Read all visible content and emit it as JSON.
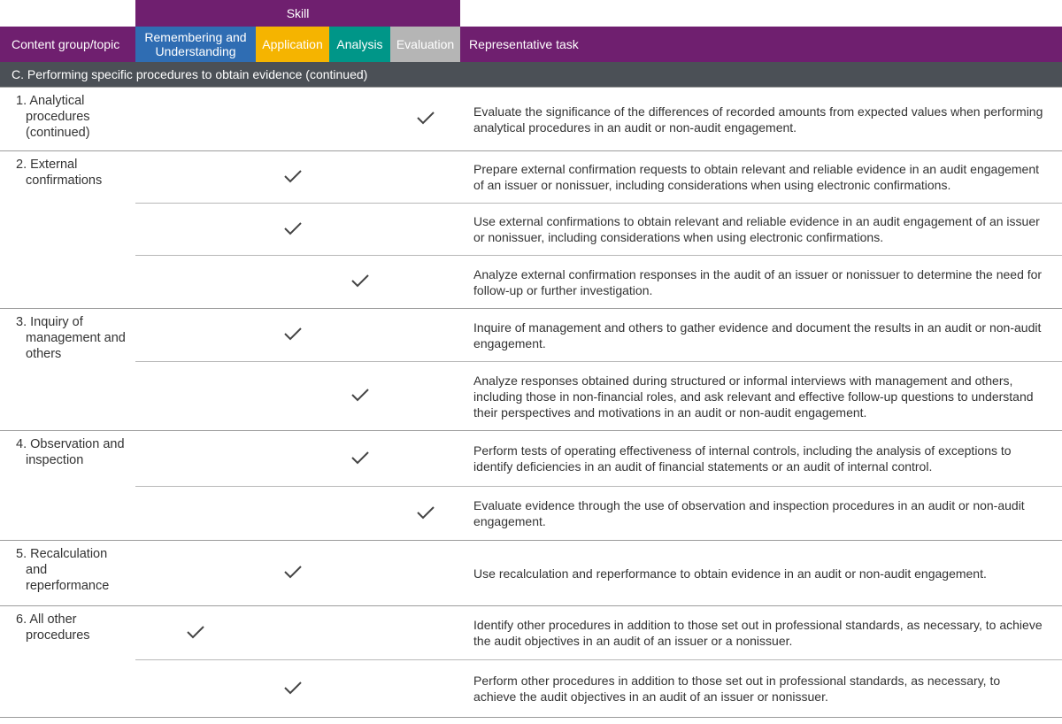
{
  "header": {
    "skill_label": "Skill",
    "columns": [
      "Content group/topic",
      "Remembering and Understanding",
      "Application",
      "Analysis",
      "Evaluation",
      "Representative task"
    ]
  },
  "section": "C. Performing specific procedures to obtain evidence (continued)",
  "groups": [
    {
      "topic": "1. Analytical procedures (continued)",
      "tasks": [
        {
          "checks": [
            false,
            false,
            false,
            true
          ],
          "text": "Evaluate the significance of the differences of recorded amounts from expected values when performing analytical procedures in an audit or non-audit engagement."
        }
      ]
    },
    {
      "topic": "2. External confirmations",
      "tasks": [
        {
          "checks": [
            false,
            true,
            false,
            false
          ],
          "text": "Prepare external confirmation requests to obtain relevant and reliable evidence in an audit engagement of an issuer or nonissuer, including considerations when using electronic confirmations."
        },
        {
          "checks": [
            false,
            true,
            false,
            false
          ],
          "text": "Use external confirmations to obtain relevant and reliable evidence in an audit engagement of an issuer or nonissuer, including considerations when using electronic confirmations."
        },
        {
          "checks": [
            false,
            false,
            true,
            false
          ],
          "text": "Analyze external confirmation responses in the audit of an issuer or nonissuer to determine the need for follow-up or further investigation."
        }
      ]
    },
    {
      "topic": "3. Inquiry of management and others",
      "tasks": [
        {
          "checks": [
            false,
            true,
            false,
            false
          ],
          "text": "Inquire of management and others to gather evidence and document the results in an audit or non-audit engagement."
        },
        {
          "checks": [
            false,
            false,
            true,
            false
          ],
          "text": "Analyze responses obtained during structured or informal interviews with management and others, including those in non-financial roles, and ask relevant and effective follow-up questions to understand their perspectives and motivations in an audit or non-audit engagement."
        }
      ]
    },
    {
      "topic": "4. Observation and inspection",
      "tasks": [
        {
          "checks": [
            false,
            false,
            true,
            false
          ],
          "text": "Perform tests of operating effectiveness of internal controls, including the analysis of exceptions to identify deficiencies in an audit of financial statements or an audit of internal control."
        },
        {
          "checks": [
            false,
            false,
            false,
            true
          ],
          "text": "Evaluate evidence through the use of observation and inspection procedures in an audit or non-audit engagement."
        }
      ]
    },
    {
      "topic": "5. Recalculation and reperformance",
      "tasks": [
        {
          "checks": [
            false,
            true,
            false,
            false
          ],
          "text": "Use recalculation and reperformance to obtain evidence in an audit or non-audit engagement."
        }
      ]
    },
    {
      "topic": "6. All other procedures",
      "tasks": [
        {
          "checks": [
            true,
            false,
            false,
            false
          ],
          "text": "Identify other procedures in addition to those set out in professional standards, as necessary, to achieve the audit objectives in an audit of an issuer or a nonissuer."
        },
        {
          "checks": [
            false,
            true,
            false,
            false
          ],
          "text": "Perform other procedures in addition to those set out in professional standards, as necessary, to achieve the audit objectives in an audit of an issuer or nonissuer."
        }
      ]
    }
  ]
}
